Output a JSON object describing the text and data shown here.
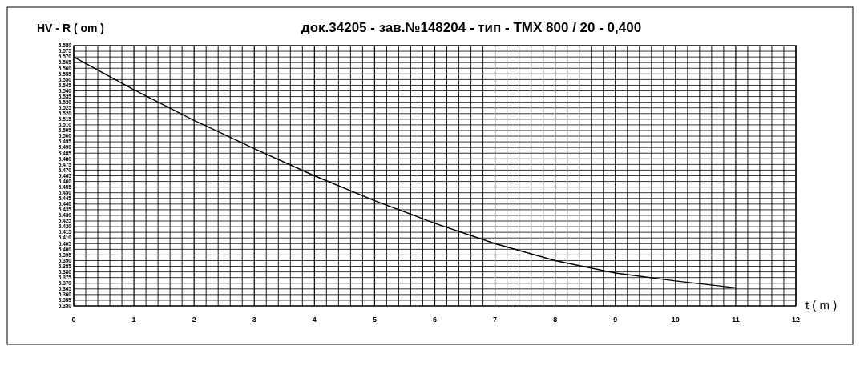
{
  "chart_data": {
    "type": "line",
    "title": "док.34205 - зав.№148204 - тип - ТМХ 800 / 20 - 0,400",
    "ylabel": "HV - R ( om )",
    "xlabel": "t ( m )",
    "x": [
      0,
      1,
      2,
      3,
      4,
      5,
      6,
      7,
      8,
      9,
      10,
      11
    ],
    "series": [
      {
        "color": "#000000",
        "values": [
          5.57,
          5.541,
          5.514,
          5.489,
          5.465,
          5.443,
          5.423,
          5.405,
          5.39,
          5.379,
          5.372,
          5.366
        ]
      }
    ],
    "xlim": [
      0,
      12
    ],
    "ylim": [
      5.35,
      5.58
    ],
    "xticks": [
      0,
      {
        "value": 0.2,
        "label": null
      },
      {
        "value": 0.4,
        "label": null
      },
      {
        "value": 0.6,
        "label": null
      },
      {
        "value": 0.8,
        "label": null
      },
      1,
      {
        "value": 1.2,
        "label": null
      },
      {
        "value": 1.4,
        "label": null
      },
      {
        "value": 1.6,
        "label": null
      },
      {
        "value": 1.8,
        "label": null
      },
      2,
      {
        "value": 2.2,
        "label": null
      },
      {
        "value": 2.4,
        "label": null
      },
      {
        "value": 2.6,
        "label": null
      },
      {
        "value": 2.8,
        "label": null
      },
      3,
      {
        "value": 3.2,
        "label": null
      },
      {
        "value": 3.4,
        "label": null
      },
      {
        "value": 3.6,
        "label": null
      },
      {
        "value": 3.8,
        "label": null
      },
      4,
      {
        "value": 4.2,
        "label": null
      },
      {
        "value": 4.4,
        "label": null
      },
      {
        "value": 4.6,
        "label": null
      },
      {
        "value": 4.8,
        "label": null
      },
      5,
      {
        "value": 5.2,
        "label": null
      },
      {
        "value": 5.4,
        "label": null
      },
      {
        "value": 5.6,
        "label": null
      },
      {
        "value": 5.8,
        "label": null
      },
      6,
      {
        "value": 6.2,
        "label": null
      },
      {
        "value": 6.4,
        "label": null
      },
      {
        "value": 6.6,
        "label": null
      },
      {
        "value": 6.8,
        "label": null
      },
      7,
      {
        "value": 7.2,
        "label": null
      },
      {
        "value": 7.4,
        "label": null
      },
      {
        "value": 7.6,
        "label": null
      },
      {
        "value": 7.8,
        "label": null
      },
      8,
      {
        "value": 8.2,
        "label": null
      },
      {
        "value": 8.4,
        "label": null
      },
      {
        "value": 8.6,
        "label": null
      },
      {
        "value": 8.8,
        "label": null
      },
      9,
      {
        "value": 9.2,
        "label": null
      },
      {
        "value": 9.4,
        "label": null
      },
      {
        "value": 9.6,
        "label": null
      },
      {
        "value": 9.8,
        "label": null
      },
      10,
      {
        "value": 10.2,
        "label": null
      },
      {
        "value": 10.4,
        "label": null
      },
      {
        "value": 10.6,
        "label": null
      },
      {
        "value": 10.8,
        "label": null
      },
      11,
      {
        "value": 11.2,
        "label": null
      },
      {
        "value": 11.4,
        "label": null
      },
      {
        "value": 11.6,
        "label": null
      },
      {
        "value": 11.8,
        "label": null
      },
      12
    ],
    "yticks": [
      {
        "value": 5.35,
        "label": "5.350"
      },
      {
        "value": 5.355,
        "label": "5.355"
      },
      {
        "value": 5.36,
        "label": "5.360"
      },
      {
        "value": 5.365,
        "label": "5.365"
      },
      {
        "value": 5.37,
        "label": "5.370"
      },
      {
        "value": 5.375,
        "label": "5.375"
      },
      {
        "value": 5.38,
        "label": "5.380"
      },
      {
        "value": 5.385,
        "label": "5.385"
      },
      {
        "value": 5.39,
        "label": "5.390"
      },
      {
        "value": 5.395,
        "label": "5.395"
      },
      {
        "value": 5.4,
        "label": "5.400"
      },
      {
        "value": 5.405,
        "label": "5.405"
      },
      {
        "value": 5.41,
        "label": "5.410"
      },
      {
        "value": 5.415,
        "label": "5.415"
      },
      {
        "value": 5.42,
        "label": "5.420"
      },
      {
        "value": 5.425,
        "label": "5.425"
      },
      {
        "value": 5.43,
        "label": "5.430"
      },
      {
        "value": 5.435,
        "label": "5.435"
      },
      {
        "value": 5.44,
        "label": "5.440"
      },
      {
        "value": 5.445,
        "label": "5.445"
      },
      {
        "value": 5.45,
        "label": "5.450"
      },
      {
        "value": 5.455,
        "label": "5.455"
      },
      {
        "value": 5.46,
        "label": "5.460"
      },
      {
        "value": 5.465,
        "label": "5.465"
      },
      {
        "value": 5.47,
        "label": "5.470"
      },
      {
        "value": 5.475,
        "label": "5.475"
      },
      {
        "value": 5.48,
        "label": "5.480"
      },
      {
        "value": 5.485,
        "label": "5.485"
      },
      {
        "value": 5.49,
        "label": "5.490"
      },
      {
        "value": 5.495,
        "label": "5.495"
      },
      {
        "value": 5.5,
        "label": "5.500"
      },
      {
        "value": 5.505,
        "label": "5.505"
      },
      {
        "value": 5.51,
        "label": "5.510"
      },
      {
        "value": 5.515,
        "label": "5.515"
      },
      {
        "value": 5.52,
        "label": "5.520"
      },
      {
        "value": 5.525,
        "label": "5.525"
      },
      {
        "value": 5.53,
        "label": "5.530"
      },
      {
        "value": 5.535,
        "label": "5.535"
      },
      {
        "value": 5.54,
        "label": "5.540"
      },
      {
        "value": 5.545,
        "label": "5.545"
      },
      {
        "value": 5.55,
        "label": "5.550"
      },
      {
        "value": 5.555,
        "label": "5.555"
      },
      {
        "value": 5.56,
        "label": "5.560"
      },
      {
        "value": 5.565,
        "label": "5.565"
      },
      {
        "value": 5.57,
        "label": "5.570"
      },
      {
        "value": 5.575,
        "label": "5.575"
      },
      {
        "value": 5.58,
        "label": "5.580"
      }
    ],
    "grid": true,
    "line_style": "solid",
    "marker": "none"
  }
}
